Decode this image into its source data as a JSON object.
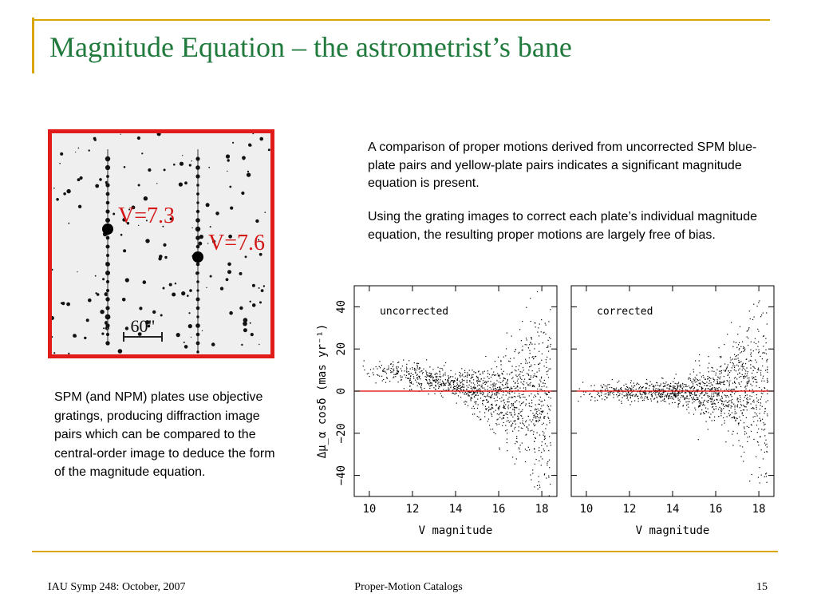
{
  "slide": {
    "title": "Magnitude Equation – the astrometrist’s bane",
    "text_right_1": "A comparison of proper motions derived from uncorrected SPM blue-plate pairs and yellow-plate pairs indicates a significant magnitude equation is present.",
    "text_right_2": "Using the grating images to correct each plate’s individual magnitude equation, the resulting proper motions are largely free of bias.",
    "text_left": "SPM (and NPM) plates use objective gratings, producing diffraction image pairs which can be compared to the central-order image to deduce the form of the magnitude equation."
  },
  "image": {
    "label_a": "V=7.3",
    "label_b": "V=7.6",
    "scale_label": "60\""
  },
  "footer": {
    "left": "IAU Symp 248: October, 2007",
    "center": "Proper-Motion Catalogs",
    "page": "15"
  },
  "colors": {
    "title": "#1f7a3c",
    "accent_rule": "#d9a600",
    "frame": "#e11a1a",
    "zero_line": "#dd0000"
  },
  "chart_data": {
    "type": "scatter",
    "ylabel": "Δμ_α cosδ  (mas yr⁻¹)",
    "ylim": [
      -50,
      50
    ],
    "xlim": [
      9.3,
      18.7
    ],
    "yticks": [
      -40,
      -20,
      0,
      20,
      40
    ],
    "xticks": [
      10,
      12,
      14,
      16,
      18
    ],
    "reference_line": 0,
    "panels": [
      {
        "label": "uncorrected",
        "xlabel": "V magnitude",
        "trend": [
          [
            10,
            12
          ],
          [
            12,
            8
          ],
          [
            14,
            3
          ],
          [
            16,
            -2
          ],
          [
            18,
            -6
          ]
        ],
        "scatter_sd": [
          [
            10,
            3
          ],
          [
            14,
            3
          ],
          [
            16,
            8
          ],
          [
            18,
            22
          ]
        ]
      },
      {
        "label": "corrected",
        "xlabel": "V magnitude",
        "trend": [
          [
            10,
            0
          ],
          [
            12,
            0
          ],
          [
            14,
            0
          ],
          [
            16,
            0
          ],
          [
            18,
            0
          ]
        ],
        "scatter_sd": [
          [
            10,
            2
          ],
          [
            14,
            2.5
          ],
          [
            16,
            7
          ],
          [
            18,
            20
          ]
        ]
      }
    ]
  }
}
